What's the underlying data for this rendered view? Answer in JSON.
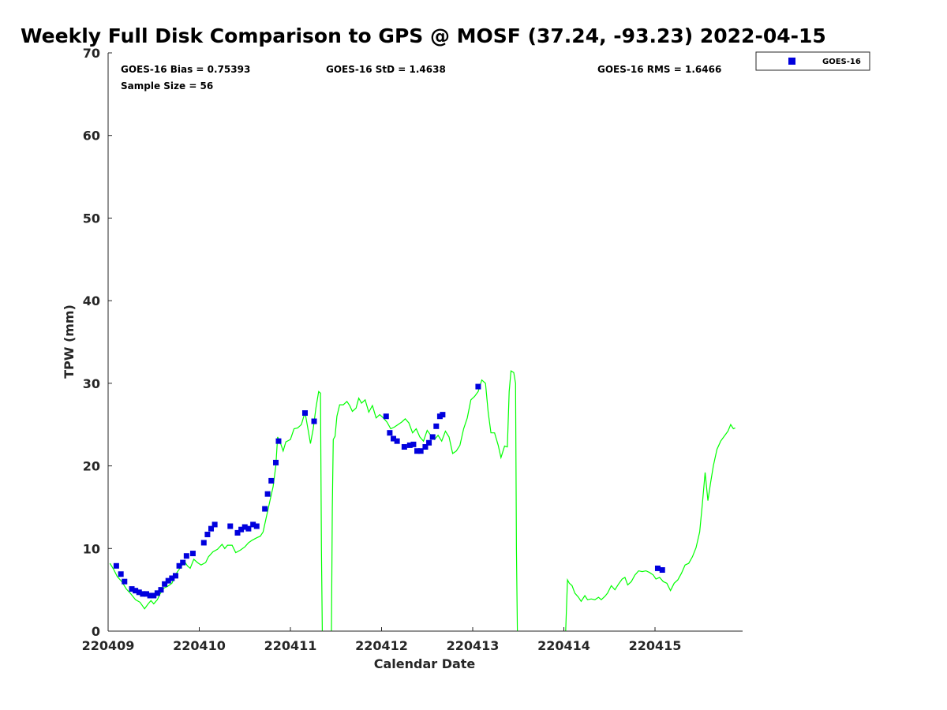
{
  "chart_data": {
    "type": "scatter",
    "title": "Weekly Full Disk Comparison to GPS @ MOSF (37.24, -93.23) 2022-04-15",
    "xlabel": "Calendar Date",
    "ylabel": "TPW (mm)",
    "xlim": [
      0,
      7
    ],
    "ylim": [
      0,
      70
    ],
    "x_ticks": [
      0,
      1,
      2,
      3,
      4,
      5,
      6
    ],
    "x_tick_labels": [
      "220409",
      "220410",
      "220411",
      "220412",
      "220413",
      "220414",
      "220415"
    ],
    "y_ticks": [
      0,
      10,
      20,
      30,
      40,
      50,
      60,
      70
    ],
    "y_tick_labels": [
      "0",
      "10",
      "20",
      "30",
      "40",
      "50",
      "60",
      "70"
    ],
    "grid": false,
    "legend_position": "top-right",
    "stats": {
      "bias": "GOES-16 Bias = 0.75393",
      "std": "GOES-16 StD = 1.4638",
      "rms": "GOES-16 RMS = 1.6466",
      "sample": "Sample Size = 56"
    },
    "series": [
      {
        "name": "GOES-16",
        "kind": "scatter",
        "color": "#0000dd",
        "points": [
          [
            0.09,
            7.9
          ],
          [
            0.14,
            6.9
          ],
          [
            0.18,
            6.0
          ],
          [
            0.26,
            5.1
          ],
          [
            0.3,
            4.9
          ],
          [
            0.34,
            4.7
          ],
          [
            0.38,
            4.5
          ],
          [
            0.42,
            4.5
          ],
          [
            0.46,
            4.3
          ],
          [
            0.5,
            4.3
          ],
          [
            0.54,
            4.6
          ],
          [
            0.58,
            5.0
          ],
          [
            0.62,
            5.7
          ],
          [
            0.66,
            6.1
          ],
          [
            0.7,
            6.4
          ],
          [
            0.74,
            6.7
          ],
          [
            0.78,
            7.9
          ],
          [
            0.82,
            8.3
          ],
          [
            0.86,
            9.1
          ],
          [
            0.93,
            9.4
          ],
          [
            1.05,
            10.7
          ],
          [
            1.09,
            11.7
          ],
          [
            1.13,
            12.4
          ],
          [
            1.17,
            12.9
          ],
          [
            1.34,
            12.7
          ],
          [
            1.42,
            11.9
          ],
          [
            1.46,
            12.3
          ],
          [
            1.5,
            12.6
          ],
          [
            1.54,
            12.4
          ],
          [
            1.59,
            12.9
          ],
          [
            1.63,
            12.7
          ],
          [
            1.72,
            14.8
          ],
          [
            1.75,
            16.6
          ],
          [
            1.79,
            18.2
          ],
          [
            1.84,
            20.4
          ],
          [
            1.87,
            23.0
          ],
          [
            2.16,
            26.4
          ],
          [
            2.26,
            25.4
          ],
          [
            3.05,
            26.0
          ],
          [
            3.09,
            24.0
          ],
          [
            3.13,
            23.3
          ],
          [
            3.17,
            23.0
          ],
          [
            3.25,
            22.3
          ],
          [
            3.31,
            22.5
          ],
          [
            3.35,
            22.6
          ],
          [
            3.39,
            21.8
          ],
          [
            3.43,
            21.8
          ],
          [
            3.48,
            22.3
          ],
          [
            3.52,
            22.8
          ],
          [
            3.56,
            23.5
          ],
          [
            3.6,
            24.8
          ],
          [
            3.64,
            26.0
          ],
          [
            3.67,
            26.2
          ],
          [
            4.06,
            29.6
          ],
          [
            6.03,
            7.6
          ],
          [
            6.08,
            7.4
          ]
        ]
      },
      {
        "name": "GPS",
        "kind": "line",
        "color": "#00ff00",
        "segments": [
          [
            [
              0.02,
              8.2
            ],
            [
              0.06,
              7.5
            ],
            [
              0.1,
              6.6
            ],
            [
              0.15,
              6.0
            ],
            [
              0.2,
              5.1
            ],
            [
              0.25,
              4.5
            ],
            [
              0.3,
              3.8
            ],
            [
              0.35,
              3.5
            ],
            [
              0.4,
              2.7
            ],
            [
              0.44,
              3.3
            ],
            [
              0.47,
              3.7
            ],
            [
              0.5,
              3.3
            ],
            [
              0.54,
              3.8
            ],
            [
              0.57,
              4.5
            ],
            [
              0.61,
              5.2
            ],
            [
              0.65,
              5.4
            ],
            [
              0.7,
              5.8
            ],
            [
              0.75,
              7.0
            ],
            [
              0.8,
              7.8
            ],
            [
              0.84,
              8.4
            ],
            [
              0.87,
              7.9
            ],
            [
              0.9,
              7.6
            ],
            [
              0.94,
              8.7
            ],
            [
              0.98,
              8.3
            ],
            [
              1.02,
              8.0
            ],
            [
              1.07,
              8.3
            ],
            [
              1.1,
              9.0
            ],
            [
              1.15,
              9.6
            ],
            [
              1.2,
              9.9
            ],
            [
              1.25,
              10.5
            ],
            [
              1.28,
              10.0
            ],
            [
              1.31,
              10.4
            ],
            [
              1.36,
              10.4
            ],
            [
              1.4,
              9.5
            ],
            [
              1.45,
              9.8
            ],
            [
              1.5,
              10.2
            ],
            [
              1.54,
              10.7
            ],
            [
              1.58,
              11.0
            ],
            [
              1.63,
              11.3
            ],
            [
              1.67,
              11.5
            ],
            [
              1.7,
              12.0
            ],
            [
              1.73,
              13.5
            ],
            [
              1.77,
              15.5
            ],
            [
              1.81,
              17.5
            ],
            [
              1.84,
              20.0
            ],
            [
              1.86,
              23.5
            ],
            [
              1.89,
              22.8
            ],
            [
              1.92,
              21.8
            ],
            [
              1.95,
              22.9
            ],
            [
              2.0,
              23.2
            ],
            [
              2.04,
              24.5
            ],
            [
              2.08,
              24.6
            ],
            [
              2.12,
              25.0
            ],
            [
              2.16,
              26.5
            ],
            [
              2.2,
              24.0
            ],
            [
              2.22,
              22.7
            ],
            [
              2.25,
              24.5
            ],
            [
              2.28,
              27.0
            ],
            [
              2.31,
              29.0
            ],
            [
              2.33,
              28.8
            ],
            [
              2.34,
              10.0
            ],
            [
              2.35,
              0.0
            ]
          ],
          [
            [
              2.45,
              0.0
            ],
            [
              2.46,
              15.0
            ],
            [
              2.47,
              23.2
            ],
            [
              2.49,
              23.6
            ],
            [
              2.51,
              26.0
            ],
            [
              2.54,
              27.4
            ],
            [
              2.58,
              27.4
            ],
            [
              2.62,
              27.8
            ],
            [
              2.65,
              27.3
            ],
            [
              2.68,
              26.6
            ],
            [
              2.72,
              27.0
            ],
            [
              2.75,
              28.2
            ],
            [
              2.78,
              27.6
            ],
            [
              2.82,
              28.0
            ],
            [
              2.86,
              26.5
            ],
            [
              2.9,
              27.3
            ],
            [
              2.94,
              25.8
            ],
            [
              2.98,
              26.2
            ],
            [
              3.02,
              25.8
            ],
            [
              3.06,
              25.3
            ],
            [
              3.1,
              24.5
            ],
            [
              3.14,
              24.7
            ],
            [
              3.18,
              25.0
            ],
            [
              3.22,
              25.3
            ],
            [
              3.26,
              25.7
            ],
            [
              3.3,
              25.2
            ],
            [
              3.34,
              24.0
            ],
            [
              3.38,
              24.5
            ],
            [
              3.42,
              23.5
            ],
            [
              3.46,
              23.0
            ],
            [
              3.5,
              24.3
            ],
            [
              3.54,
              23.7
            ],
            [
              3.58,
              23.2
            ],
            [
              3.62,
              23.7
            ],
            [
              3.66,
              23.0
            ],
            [
              3.7,
              24.2
            ],
            [
              3.74,
              23.5
            ],
            [
              3.78,
              21.5
            ],
            [
              3.82,
              21.8
            ],
            [
              3.86,
              22.5
            ],
            [
              3.9,
              24.5
            ],
            [
              3.94,
              25.8
            ],
            [
              3.98,
              28.0
            ],
            [
              4.02,
              28.4
            ],
            [
              4.06,
              29.0
            ],
            [
              4.1,
              30.4
            ],
            [
              4.14,
              30.0
            ],
            [
              4.17,
              26.5
            ],
            [
              4.2,
              24.0
            ],
            [
              4.24,
              24.0
            ],
            [
              4.28,
              22.5
            ],
            [
              4.31,
              21.0
            ],
            [
              4.35,
              22.4
            ],
            [
              4.38,
              22.3
            ],
            [
              4.4,
              29.0
            ],
            [
              4.42,
              31.5
            ],
            [
              4.45,
              31.3
            ],
            [
              4.47,
              30.0
            ],
            [
              4.48,
              10.0
            ],
            [
              4.49,
              0.0
            ]
          ],
          [
            [
              5.02,
              0.0
            ],
            [
              5.04,
              6.2
            ],
            [
              5.06,
              5.8
            ],
            [
              5.09,
              5.5
            ],
            [
              5.12,
              4.6
            ],
            [
              5.16,
              4.1
            ],
            [
              5.19,
              3.6
            ],
            [
              5.23,
              4.3
            ],
            [
              5.26,
              3.8
            ],
            [
              5.3,
              3.9
            ],
            [
              5.34,
              3.8
            ],
            [
              5.38,
              4.1
            ],
            [
              5.41,
              3.8
            ],
            [
              5.45,
              4.2
            ],
            [
              5.48,
              4.6
            ],
            [
              5.52,
              5.5
            ],
            [
              5.56,
              5.0
            ],
            [
              5.6,
              5.7
            ],
            [
              5.64,
              6.3
            ],
            [
              5.67,
              6.5
            ],
            [
              5.7,
              5.6
            ],
            [
              5.74,
              6.0
            ],
            [
              5.78,
              6.8
            ],
            [
              5.82,
              7.3
            ],
            [
              5.86,
              7.2
            ],
            [
              5.9,
              7.3
            ],
            [
              5.94,
              7.1
            ],
            [
              5.98,
              6.8
            ],
            [
              6.01,
              6.3
            ],
            [
              6.05,
              6.5
            ],
            [
              6.09,
              6.0
            ],
            [
              6.13,
              5.8
            ],
            [
              6.17,
              4.9
            ],
            [
              6.21,
              5.8
            ],
            [
              6.25,
              6.2
            ],
            [
              6.29,
              7.0
            ],
            [
              6.33,
              8.0
            ],
            [
              6.37,
              8.2
            ],
            [
              6.41,
              9.0
            ],
            [
              6.45,
              10.1
            ],
            [
              6.49,
              12.0
            ],
            [
              6.52,
              15.5
            ],
            [
              6.55,
              19.2
            ],
            [
              6.58,
              15.8
            ],
            [
              6.61,
              18.0
            ],
            [
              6.64,
              20.0
            ],
            [
              6.68,
              22.0
            ],
            [
              6.72,
              23.0
            ],
            [
              6.76,
              23.6
            ],
            [
              6.8,
              24.2
            ],
            [
              6.83,
              25.0
            ],
            [
              6.86,
              24.5
            ],
            [
              6.88,
              24.6
            ]
          ]
        ]
      }
    ]
  },
  "legend": {
    "entries": [
      "GOES-16"
    ]
  }
}
